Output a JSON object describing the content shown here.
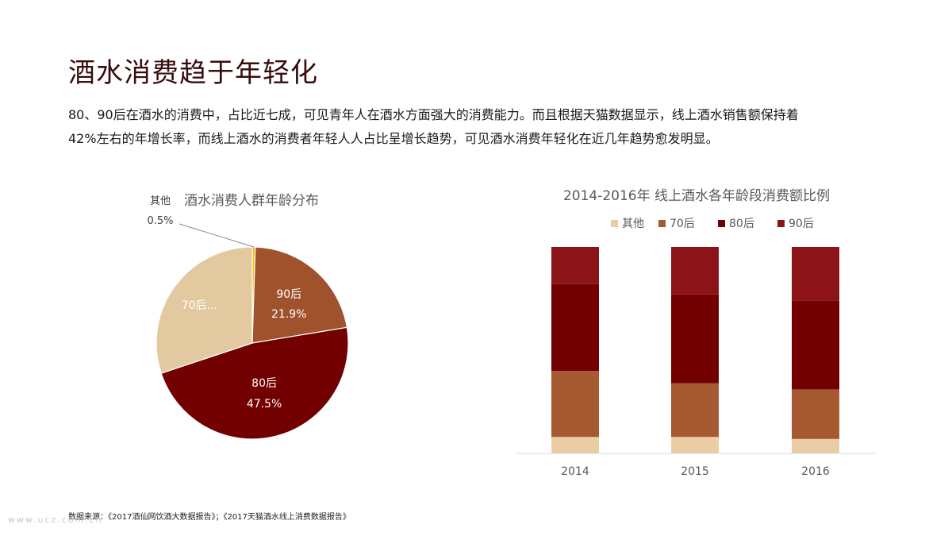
{
  "page": {
    "title": "酒水消费趋于年轻化",
    "description_line1": "80、90后在酒水的消费中，占比近七成，可见青年人在酒水方面强大的消费能力。而且根据天猫数据显示，线上酒水销售额保持着",
    "description_line2": "42%左右的年增长率，而线上酒水的消费者年轻人人占比呈增长趋势，可见酒水消费年轻化在近几年趋势愈发明显。",
    "source": "数据来源：《2017酒仙网饮酒大数据报告》；《2017天猫酒水线上消费数据报告》",
    "watermark": "www.ucz.com.cn"
  },
  "chart_data": [
    {
      "type": "pie",
      "title": "酒水消费人群年龄分布",
      "slices": [
        {
          "name": "其他",
          "value": 0.5,
          "label": "0.5%",
          "color": "#F2C100"
        },
        {
          "name": "90后",
          "value": 21.9,
          "label": "21.9%",
          "color": "#A0522D"
        },
        {
          "name": "80后",
          "value": 47.5,
          "label": "47.5%",
          "color": "#720000"
        },
        {
          "name": "70后",
          "value": 30.1,
          "label": "70后...",
          "color": "#E3C9A0"
        }
      ]
    },
    {
      "type": "bar",
      "stacked": true,
      "title": "2014-2016年 线上酒水各年龄段消费额比例",
      "categories": [
        "2014",
        "2015",
        "2016"
      ],
      "legend_position": "top",
      "series": [
        {
          "name": "其他",
          "color": "#EACDA5",
          "values": [
            8,
            8,
            7
          ]
        },
        {
          "name": "70后",
          "color": "#A55A32",
          "values": [
            32,
            26,
            24
          ]
        },
        {
          "name": "80后",
          "color": "#720000",
          "values": [
            42,
            43,
            43
          ]
        },
        {
          "name": "90后",
          "color": "#8C1418",
          "values": [
            18,
            23,
            26
          ]
        }
      ],
      "ylim": [
        0,
        100
      ]
    }
  ]
}
